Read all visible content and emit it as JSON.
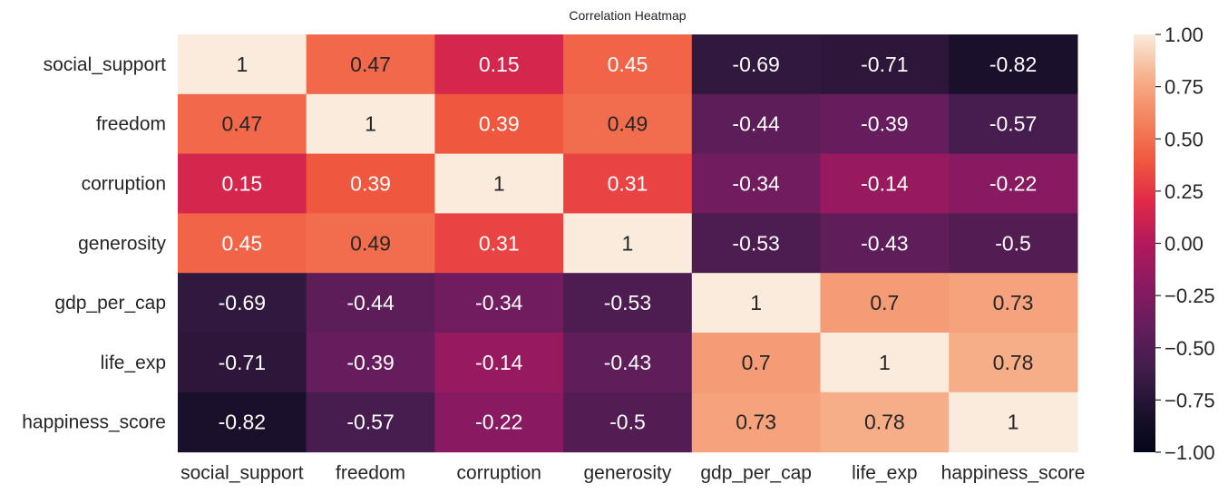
{
  "chart_data": {
    "type": "heatmap",
    "title": "Correlation Heatmap",
    "rows": [
      "social_support",
      "freedom",
      "corruption",
      "generosity",
      "gdp_per_cap",
      "life_exp",
      "happiness_score"
    ],
    "columns": [
      "social_support",
      "freedom",
      "corruption",
      "generosity",
      "gdp_per_cap",
      "life_exp",
      "happiness_score"
    ],
    "values": [
      [
        1,
        0.47,
        0.15,
        0.45,
        -0.69,
        -0.71,
        -0.82
      ],
      [
        0.47,
        1,
        0.39,
        0.49,
        -0.44,
        -0.39,
        -0.57
      ],
      [
        0.15,
        0.39,
        1,
        0.31,
        -0.34,
        -0.14,
        -0.22
      ],
      [
        0.45,
        0.49,
        0.31,
        1,
        -0.53,
        -0.43,
        -0.5
      ],
      [
        -0.69,
        -0.44,
        -0.34,
        -0.53,
        1,
        0.7,
        0.73
      ],
      [
        -0.71,
        -0.39,
        -0.14,
        -0.43,
        0.7,
        1,
        0.78
      ],
      [
        -0.82,
        -0.57,
        -0.22,
        -0.5,
        0.73,
        0.78,
        1
      ]
    ],
    "value_labels": [
      [
        "1",
        "0.47",
        "0.15",
        "0.45",
        "-0.69",
        "-0.71",
        "-0.82"
      ],
      [
        "0.47",
        "1",
        "0.39",
        "0.49",
        "-0.44",
        "-0.39",
        "-0.57"
      ],
      [
        "0.15",
        "0.39",
        "1",
        "0.31",
        "-0.34",
        "-0.14",
        "-0.22"
      ],
      [
        "0.45",
        "0.49",
        "0.31",
        "1",
        "-0.53",
        "-0.43",
        "-0.5"
      ],
      [
        "-0.69",
        "-0.44",
        "-0.34",
        "-0.53",
        "1",
        "0.7",
        "0.73"
      ],
      [
        "-0.71",
        "-0.39",
        "-0.14",
        "-0.43",
        "0.7",
        "1",
        "0.78"
      ],
      [
        "-0.82",
        "-0.57",
        "-0.22",
        "-0.5",
        "0.73",
        "0.78",
        "1"
      ]
    ],
    "colormap": "rocket",
    "vmin": -1,
    "vmax": 1,
    "colorbar_ticks": [
      1.0,
      0.75,
      0.5,
      0.25,
      0.0,
      -0.25,
      -0.5,
      -0.75,
      -1.0
    ],
    "colorbar_tick_labels": [
      "1.00",
      "0.75",
      "0.50",
      "0.25",
      "0.00",
      "−0.25",
      "−0.50",
      "−0.75",
      "−1.00"
    ],
    "colorbar_position": "right",
    "grid": false
  }
}
